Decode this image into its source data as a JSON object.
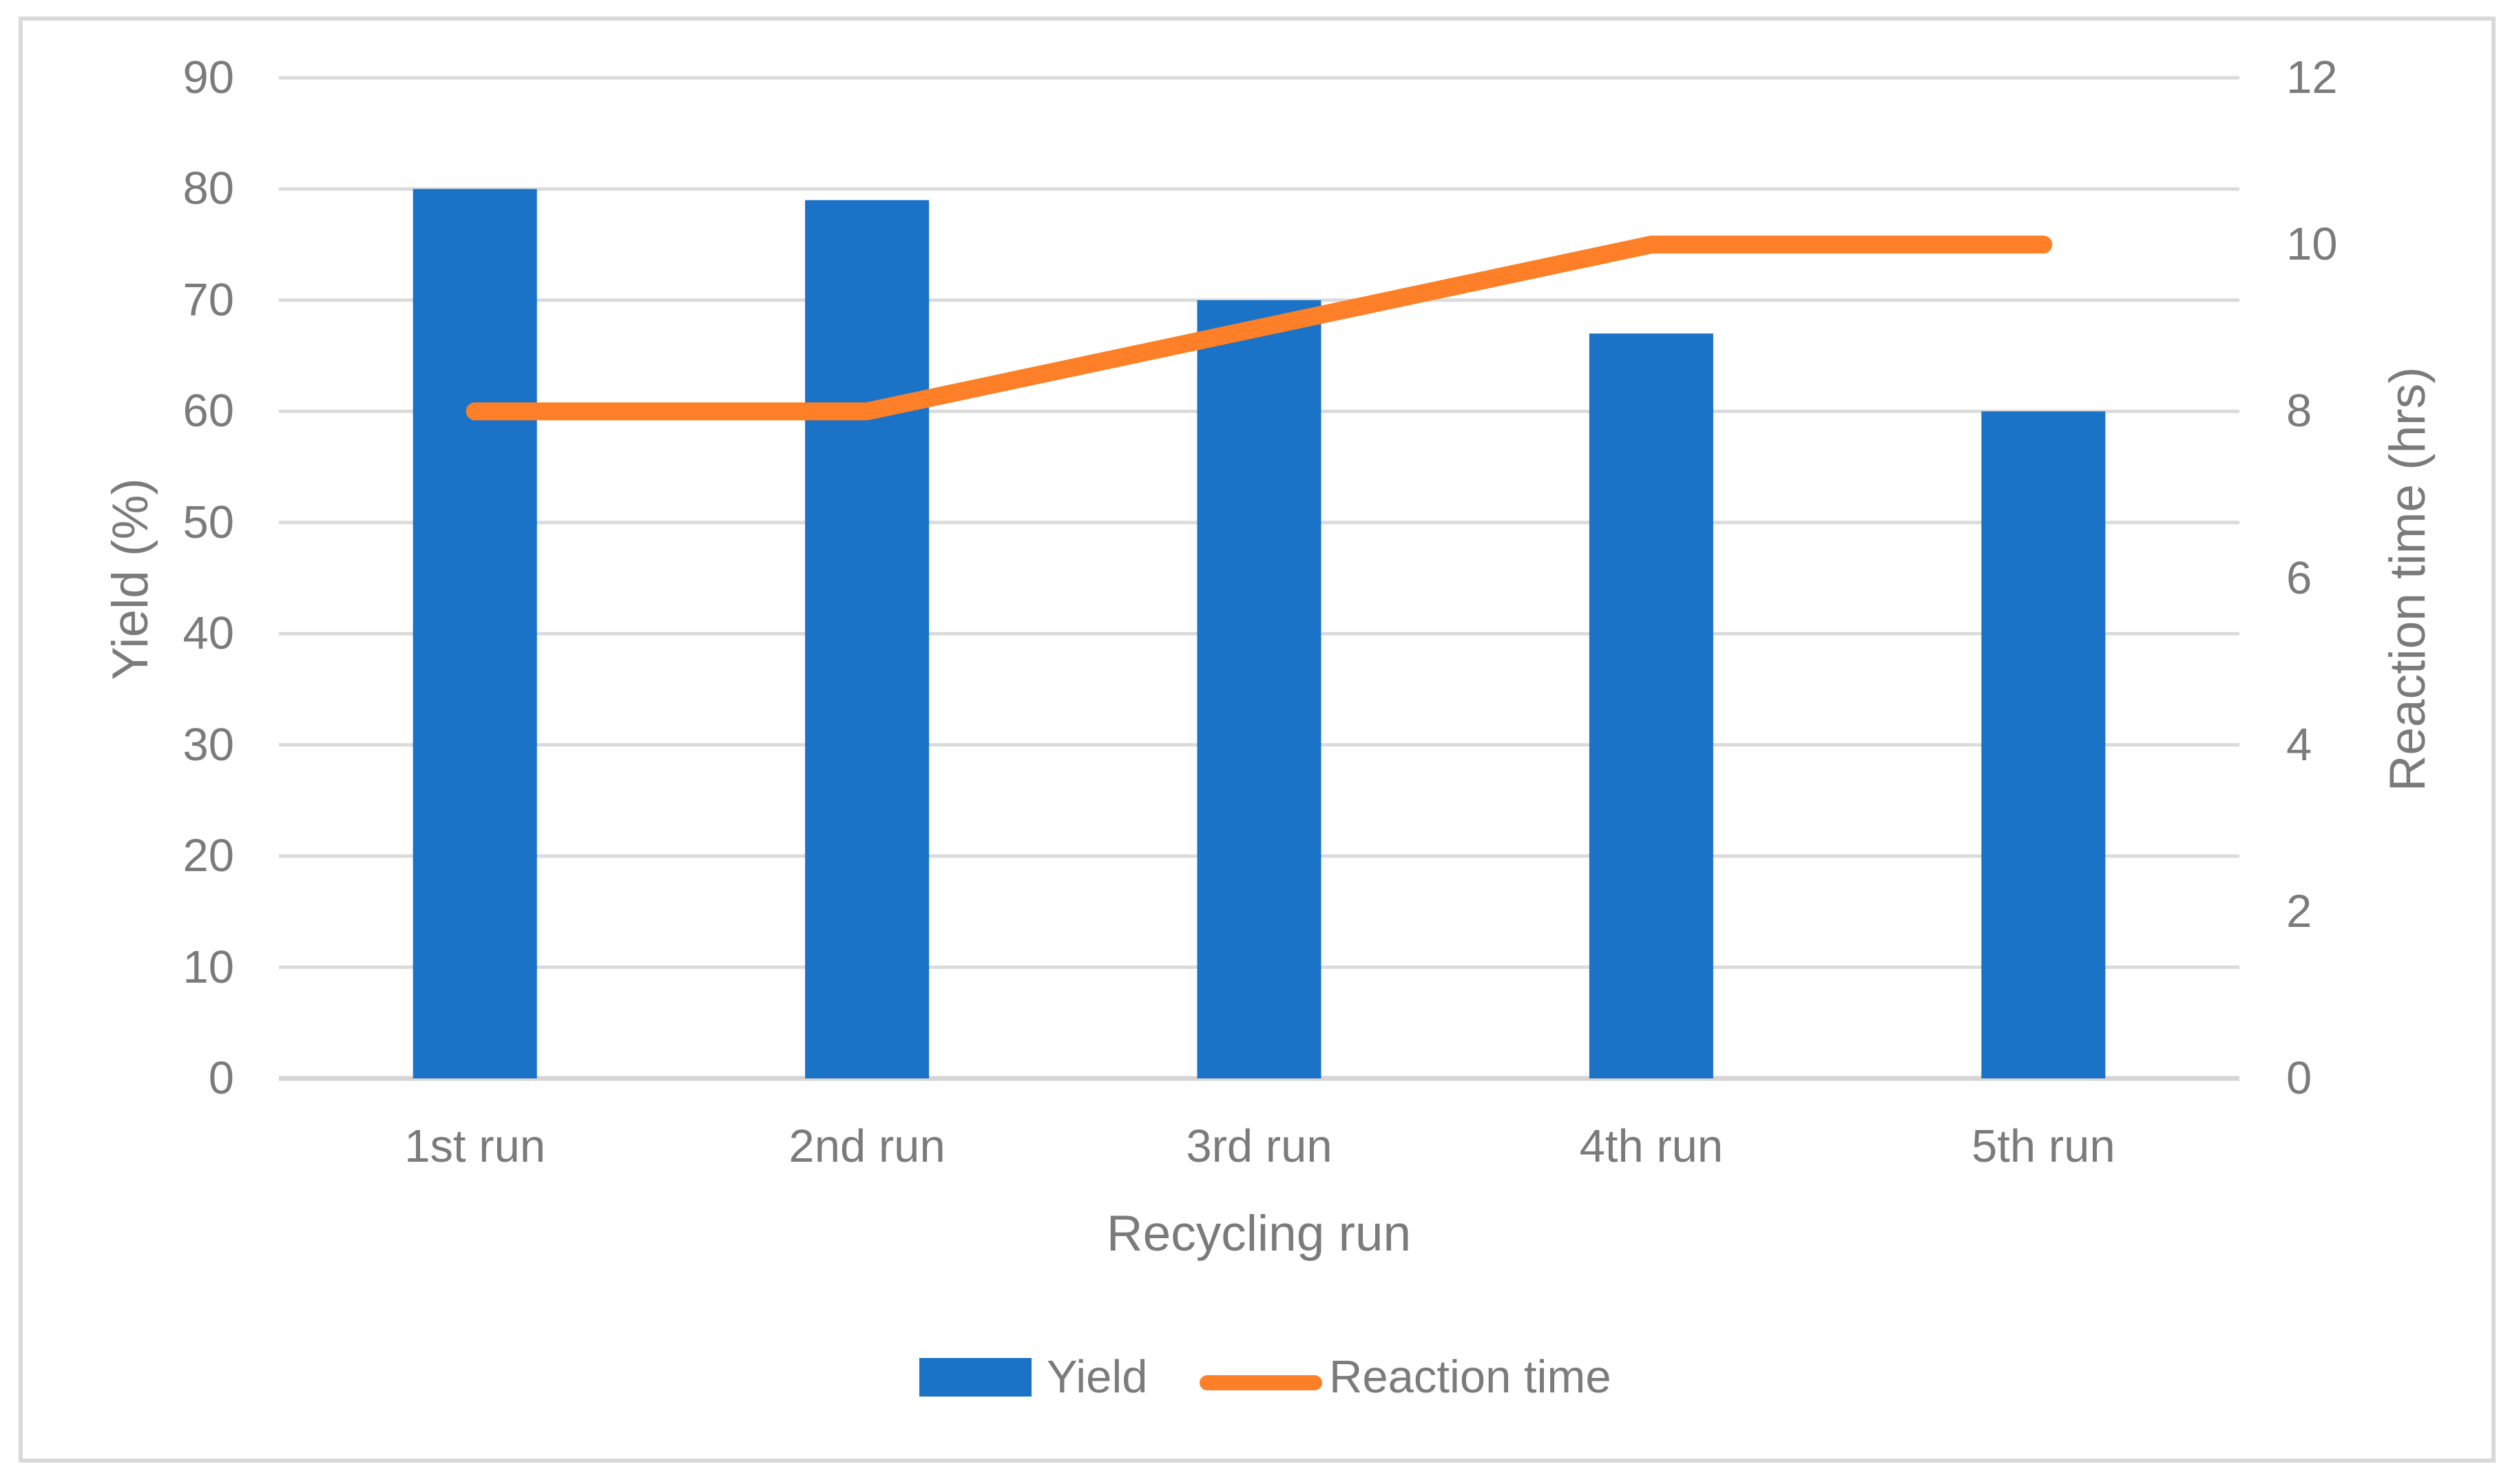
{
  "chart_data": {
    "type": "combo",
    "categories": [
      "1st run",
      "2nd run",
      "3rd run",
      "4th run",
      "5th run"
    ],
    "series": [
      {
        "name": "Yield",
        "type": "bar",
        "axis": "left",
        "values": [
          80,
          79,
          70,
          67,
          60
        ],
        "color": "#1B73C7"
      },
      {
        "name": "Reaction time",
        "type": "line",
        "axis": "right",
        "values": [
          8,
          8,
          9,
          10,
          10
        ],
        "color": "#FD8028"
      }
    ],
    "left_axis": {
      "title": "Yield (%)",
      "min": 0,
      "max": 90,
      "step": 10,
      "tick_labels": [
        "0",
        "10",
        "20",
        "30",
        "40",
        "50",
        "60",
        "70",
        "80",
        "90"
      ]
    },
    "right_axis": {
      "title": "Reaction time (hrs)",
      "min": 0,
      "max": 12,
      "step": 2,
      "tick_labels": [
        "0",
        "2",
        "4",
        "6",
        "8",
        "10",
        "12"
      ]
    },
    "x_axis": {
      "title": "Recycling run"
    },
    "legend": {
      "position": "bottom",
      "entries": [
        "Yield",
        "Reaction time"
      ]
    },
    "grid": true,
    "styles": {
      "gridline_color": "#DBDBDB",
      "axisline_color": "#D5D5D5",
      "border_color": "#D9D9D9",
      "text_color": "#7B7B7B",
      "background_color": "#FFFFFF"
    }
  }
}
